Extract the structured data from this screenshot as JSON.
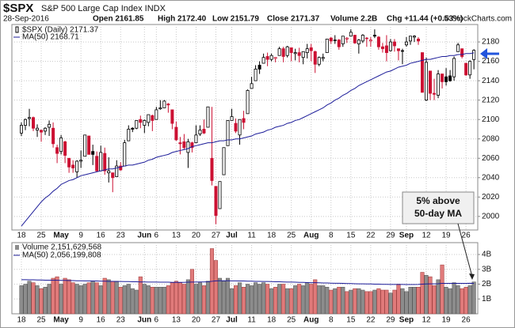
{
  "chart_data": [
    {
      "type": "candlestick",
      "title": "$SPX",
      "subtitle": "S&P 500 Large Cap Index INDX",
      "date": "28-Sep-2016",
      "quote": [
        "Open 2161.85",
        "High 2172.40",
        "Low 2151.79",
        "Close 2171.37",
        "Volume 2.2B",
        "Chg +11.44 (+0.53%)"
      ],
      "credit": "© StockCharts.com",
      "legend_label": "$SPX (Daily) 2171.37",
      "annotation": [
        "5% above",
        "50-day MA"
      ],
      "up_color": "#000000",
      "down_color": "#cc1133",
      "grid": true,
      "ylim": [
        1986,
        2198
      ],
      "yticks": [
        2000,
        2020,
        2040,
        2060,
        2080,
        2100,
        2120,
        2140,
        2160,
        2180
      ],
      "categories": [
        "18",
        null,
        null,
        null,
        null,
        "25",
        null,
        null,
        null,
        null,
        "May",
        null,
        null,
        null,
        null,
        "9",
        null,
        null,
        null,
        null,
        "16",
        null,
        null,
        null,
        null,
        "23",
        null,
        null,
        null,
        null,
        null,
        "Jun",
        null,
        null,
        "6",
        null,
        null,
        null,
        null,
        "13",
        null,
        null,
        null,
        null,
        "20",
        null,
        null,
        null,
        null,
        "27",
        null,
        null,
        null,
        "Jul",
        null,
        null,
        null,
        null,
        "11",
        null,
        null,
        null,
        null,
        "18",
        null,
        null,
        null,
        null,
        "25",
        null,
        null,
        null,
        null,
        "Aug",
        null,
        null,
        null,
        null,
        "8",
        null,
        null,
        null,
        null,
        "15",
        null,
        null,
        null,
        null,
        "22",
        null,
        null,
        null,
        null,
        "29",
        null,
        null,
        null,
        "Sep",
        null,
        null,
        null,
        null,
        "12",
        null,
        null,
        null,
        null,
        "19",
        null,
        null,
        null,
        null,
        "26",
        null,
        null
      ],
      "open": [
        2086,
        2094,
        2101,
        2102,
        2089,
        2089,
        2088,
        2092,
        2091,
        2071,
        2067,
        2077,
        2060,
        2053,
        2046,
        2057,
        2062,
        2083,
        2067,
        2062,
        2047,
        2065,
        2045,
        2045,
        2041,
        2052,
        2052,
        2078,
        2091,
        2091,
        2100,
        2094,
        2097,
        2104,
        2100,
        2111,
        2112,
        2116,
        2110,
        2092,
        2076,
        2077,
        2066,
        2076,
        2076,
        2085,
        2090,
        2092,
        2060,
        2031,
        2008,
        2043,
        2073,
        2099,
        2096,
        2084,
        2101,
        2106,
        2132,
        2140,
        2156,
        2158,
        2165,
        2162,
        2163,
        2166,
        2173,
        2166,
        2174,
        2168,
        2169,
        2164,
        2169,
        2174,
        2170,
        2157,
        2163,
        2169,
        2184,
        2182,
        2182,
        2178,
        2183,
        2186,
        2187,
        2178,
        2181,
        2184,
        2181,
        2187,
        2185,
        2175,
        2176,
        2171,
        2180,
        2173,
        2171,
        2177,
        2181,
        2185,
        2183,
        2169,
        2120,
        2150,
        2127,
        2125,
        2147,
        2144,
        2145,
        2144,
        2170,
        2173,
        2158,
        2146,
        2161.85
      ],
      "high": [
        2097,
        2101,
        2111,
        2103,
        2095,
        2089,
        2092,
        2099,
        2097,
        2074,
        2084,
        2078,
        2060,
        2058,
        2058,
        2068,
        2084,
        2083,
        2074,
        2067,
        2073,
        2071,
        2061,
        2045,
        2058,
        2056,
        2079,
        2094,
        2092,
        2099,
        2104,
        2100,
        2105,
        2105,
        2113,
        2120,
        2120,
        2117,
        2110,
        2098,
        2082,
        2085,
        2080,
        2077,
        2094,
        2094,
        2100,
        2113,
        2113,
        2031,
        2036,
        2071,
        2099,
        2111,
        2101,
        2100,
        2109,
        2131,
        2144,
        2156,
        2160,
        2168,
        2169,
        2168,
        2164,
        2175,
        2175,
        2176,
        2174,
        2173,
        2174,
        2170,
        2178,
        2178,
        2171,
        2165,
        2168,
        2183,
        2185,
        2187,
        2183,
        2186,
        2185,
        2193,
        2187,
        2183,
        2188,
        2185,
        2185,
        2193,
        2186,
        2179,
        2187,
        2183,
        2183,
        2173,
        2173,
        2185,
        2186,
        2187,
        2185,
        2169,
        2164,
        2150,
        2142,
        2151,
        2147,
        2153,
        2151,
        2165,
        2179,
        2173,
        2158,
        2161,
        2172.4
      ],
      "low": [
        2083,
        2089,
        2093,
        2088,
        2082,
        2077,
        2084,
        2083,
        2071,
        2055,
        2064,
        2055,
        2045,
        2045,
        2040,
        2050,
        2062,
        2064,
        2053,
        2046,
        2047,
        2043,
        2035,
        2025,
        2041,
        2047,
        2052,
        2078,
        2087,
        2090,
        2091,
        2086,
        2093,
        2088,
        2100,
        2110,
        2112,
        2107,
        2090,
        2078,
        2064,
        2069,
        2050,
        2066,
        2076,
        2083,
        2085,
        2092,
        2032,
        1992,
        2008,
        2043,
        2073,
        2099,
        2086,
        2074,
        2090,
        2106,
        2132,
        2140,
        2147,
        2158,
        2155,
        2160,
        2159,
        2166,
        2159,
        2164,
        2160,
        2161,
        2159,
        2157,
        2163,
        2160,
        2148,
        2155,
        2160,
        2169,
        2178,
        2178,
        2172,
        2175,
        2179,
        2186,
        2178,
        2168,
        2179,
        2175,
        2175,
        2184,
        2172,
        2169,
        2160,
        2170,
        2170,
        2161,
        2157,
        2175,
        2177,
        2180,
        2177,
        2128,
        2119,
        2120,
        2120,
        2122,
        2132,
        2135,
        2139,
        2140,
        2170,
        2163,
        2145,
        2142,
        2151.79
      ],
      "close": [
        2094,
        2100,
        2102,
        2091,
        2091,
        2087,
        2091,
        2095,
        2075,
        2065,
        2081,
        2063,
        2051,
        2050,
        2057,
        2058,
        2084,
        2064,
        2064,
        2047,
        2066,
        2047,
        2047,
        2040,
        2052,
        2048,
        2076,
        2090,
        2090,
        2099,
        2097,
        2099,
        2105,
        2099,
        2110,
        2112,
        2119,
        2115,
        2096,
        2079,
        2075,
        2071,
        2077,
        2071,
        2084,
        2089,
        2086,
        2113,
        2037,
        2001,
        2036,
        2071,
        2099,
        2103,
        2088,
        2100,
        2097,
        2130,
        2137,
        2152,
        2152,
        2164,
        2162,
        2166,
        2164,
        2173,
        2165,
        2175,
        2169,
        2169,
        2166,
        2170,
        2173,
        2171,
        2157,
        2164,
        2164,
        2183,
        2181,
        2182,
        2175,
        2186,
        2184,
        2190,
        2179,
        2182,
        2187,
        2184,
        2182,
        2186,
        2175,
        2173,
        2169,
        2180,
        2176,
        2171,
        2171,
        2180,
        2186,
        2186,
        2181,
        2128,
        2159,
        2127,
        2126,
        2147,
        2139,
        2139,
        2140,
        2163,
        2177,
        2165,
        2146,
        2160,
        2171.37
      ],
      "series": [
        {
          "name": "MA(50) 2168.71",
          "color": "#1c1c99",
          "values": [
            1990,
            1995,
            2000,
            2005,
            2010,
            2015,
            2019,
            2022,
            2026,
            2029,
            2033,
            2035,
            2037,
            2038,
            2040,
            2042,
            2043,
            2044,
            2045,
            2046,
            2047,
            2048,
            2049,
            2049,
            2050,
            2051,
            2052,
            2053,
            2053,
            2054,
            2055,
            2056,
            2058,
            2059,
            2061,
            2062,
            2063,
            2064,
            2066,
            2067,
            2068,
            2069,
            2070,
            2072,
            2073,
            2074,
            2075,
            2076,
            2076,
            2077,
            2078,
            2078,
            2079,
            2079,
            2080,
            2080,
            2081,
            2082,
            2083,
            2085,
            2086,
            2087,
            2089,
            2090,
            2092,
            2093,
            2094,
            2096,
            2097,
            2099,
            2100,
            2102,
            2104,
            2106,
            2108,
            2110,
            2112,
            2115,
            2117,
            2120,
            2122,
            2125,
            2127,
            2130,
            2132,
            2135,
            2137,
            2139,
            2141,
            2143,
            2145,
            2147,
            2149,
            2150,
            2152,
            2154,
            2155,
            2156,
            2158,
            2159,
            2160,
            2161,
            2162,
            2162,
            2163,
            2164,
            2165,
            2165,
            2166,
            2166,
            2167,
            2167,
            2168,
            2168,
            2168.71
          ]
        }
      ]
    },
    {
      "type": "bar",
      "legend_label": "Volume 2,151,629,568",
      "up_color": "#8c8c8c",
      "down_color": "#e07a7a",
      "grid": true,
      "ylim": [
        0,
        4.8
      ],
      "yticks": [
        {
          "value": 1,
          "label": "1B"
        },
        {
          "value": 2,
          "label": "2B"
        },
        {
          "value": 3,
          "label": "3B"
        },
        {
          "value": 4,
          "label": "4B"
        }
      ],
      "values": [
        1.9,
        2.0,
        2.2,
        2.1,
        1.9,
        1.7,
        1.8,
        2.0,
        2.4,
        2.5,
        2.0,
        2.4,
        2.3,
        2.1,
        2.0,
        1.9,
        2.0,
        2.1,
        2.2,
        2.1,
        1.9,
        2.4,
        2.3,
        2.2,
        2.2,
        1.8,
        1.9,
        2.0,
        1.7,
        1.6,
        2.5,
        2.0,
        1.9,
        1.8,
        1.8,
        1.8,
        1.8,
        1.9,
        2.1,
        2.2,
        2.1,
        2.0,
        2.3,
        3.0,
        2.0,
        2.1,
        1.9,
        2.2,
        4.4,
        3.6,
        2.4,
        2.2,
        2.4,
        1.7,
        1.9,
        2.1,
        1.8,
        2.0,
        1.9,
        2.1,
        2.0,
        2.1,
        2.0,
        1.7,
        1.8,
        2.0,
        2.0,
        1.7,
        1.7,
        1.9,
        2.0,
        1.9,
        2.1,
        2.0,
        2.3,
        1.9,
        1.9,
        1.8,
        1.6,
        1.7,
        1.8,
        1.8,
        1.5,
        1.6,
        1.7,
        1.7,
        1.6,
        1.5,
        1.5,
        1.6,
        1.7,
        1.6,
        1.6,
        1.4,
        1.6,
        2.0,
        1.7,
        1.5,
        1.8,
        1.8,
        1.8,
        2.8,
        2.6,
        2.5,
        1.9,
        2.3,
        3.3,
        1.8,
        1.7,
        2.1,
        1.9,
        1.7,
        1.8,
        1.9,
        2.15
      ],
      "series": [
        {
          "name": "MA(50) 2,056,199,808",
          "color": "#1c1c99",
          "values": [
            2.3,
            2.3,
            2.29,
            2.29,
            2.28,
            2.28,
            2.27,
            2.27,
            2.26,
            2.26,
            2.25,
            2.25,
            2.24,
            2.24,
            2.23,
            2.23,
            2.22,
            2.22,
            2.21,
            2.21,
            2.2,
            2.2,
            2.19,
            2.19,
            2.18,
            2.18,
            2.17,
            2.17,
            2.16,
            2.16,
            2.15,
            2.15,
            2.14,
            2.14,
            2.14,
            2.13,
            2.13,
            2.13,
            2.12,
            2.12,
            2.12,
            2.12,
            2.13,
            2.14,
            2.14,
            2.15,
            2.15,
            2.16,
            2.19,
            2.22,
            2.23,
            2.23,
            2.23,
            2.22,
            2.22,
            2.21,
            2.21,
            2.2,
            2.2,
            2.19,
            2.19,
            2.18,
            2.18,
            2.17,
            2.16,
            2.16,
            2.15,
            2.14,
            2.14,
            2.13,
            2.12,
            2.12,
            2.11,
            2.1,
            2.1,
            2.09,
            2.08,
            2.08,
            2.07,
            2.06,
            2.06,
            2.05,
            2.04,
            2.04,
            2.03,
            2.02,
            2.02,
            2.01,
            2.01,
            2.0,
            2.0,
            1.99,
            1.99,
            1.98,
            1.98,
            1.98,
            1.98,
            1.97,
            1.97,
            1.97,
            1.98,
            2.0,
            2.01,
            2.02,
            2.02,
            2.03,
            2.05,
            2.05,
            2.05,
            2.05,
            2.05,
            2.05,
            2.05,
            2.06,
            2.056
          ]
        }
      ]
    }
  ]
}
